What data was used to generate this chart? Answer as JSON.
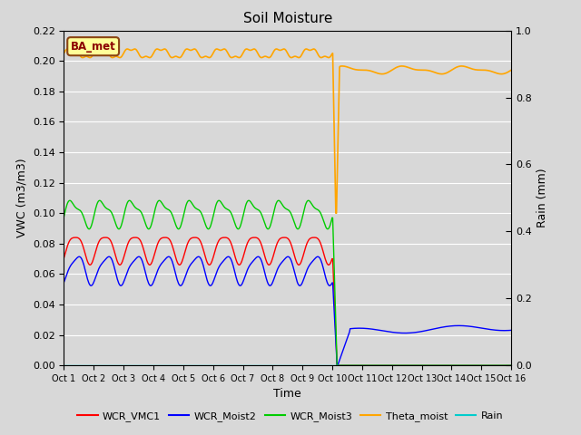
{
  "title": "Soil Moisture",
  "ylabel_left": "VWC (m3/m3)",
  "ylabel_right": "Rain (mm)",
  "xlabel": "Time",
  "ylim_left": [
    0.0,
    0.22
  ],
  "ylim_right": [
    0.0,
    1.0
  ],
  "background_color": "#d8d8d8",
  "plot_bg_color": "#d8d8d8",
  "annotation_text": "BA_met",
  "annotation_color": "#8b0000",
  "annotation_bg": "#ffff99",
  "annotation_border": "#8b4513",
  "x_tick_labels": [
    "Oct 1",
    "Oct 2",
    "Oct 3",
    "Oct 4",
    "Oct 5",
    "Oct 6",
    "Oct 7",
    "Oct 8",
    "Oct 9",
    "Oct 10",
    "Oct 11",
    "Oct 12",
    "Oct 13",
    "Oct 14",
    "Oct 15",
    "Oct 16"
  ],
  "legend_entries": [
    "WCR_VMC1",
    "WCR_Moist2",
    "WCR_Moist3",
    "Theta_moist",
    "Rain"
  ],
  "legend_colors": [
    "#ff0000",
    "#0000ff",
    "#00cc00",
    "#ffa500",
    "#00cccc"
  ]
}
